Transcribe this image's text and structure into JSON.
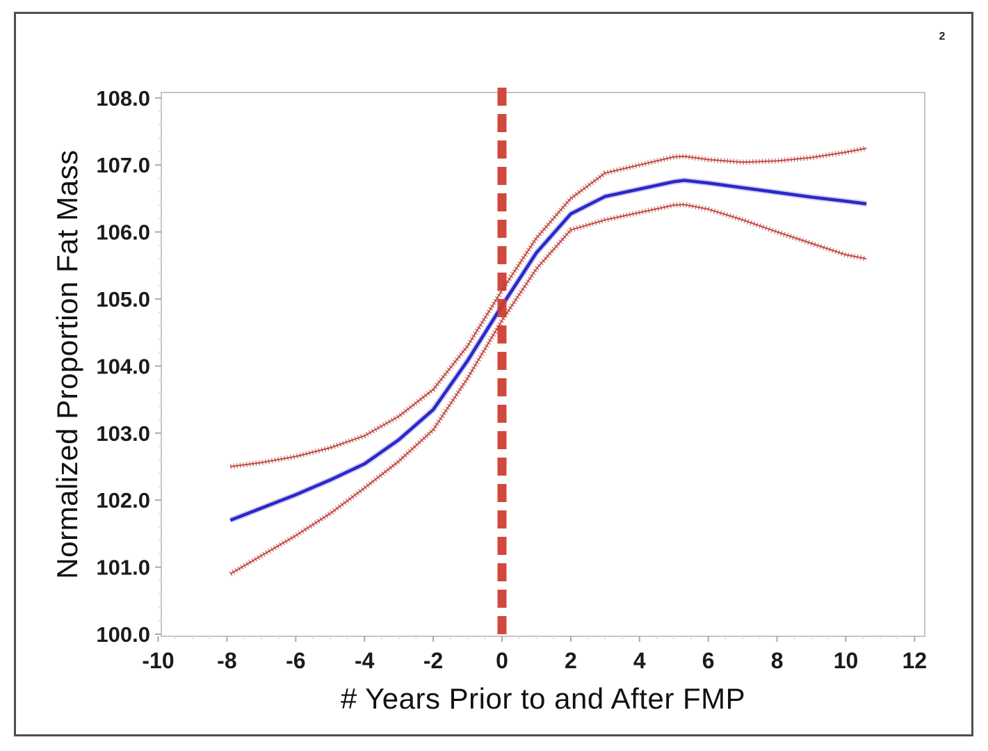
{
  "page": {
    "number": "2"
  },
  "colors": {
    "mean_line": "#2b29c8",
    "mean_halo": "#8d8ddd",
    "ci_line": "#bb423c",
    "ci_hatch": "#c7524c",
    "reference_line": "#ce3b30",
    "frame": "#c6c6c6",
    "major_tick": "#a8a8a8",
    "minor_tick": "#d9d9d9",
    "tick_label": "#1b1b1b"
  },
  "chart_data": {
    "type": "line",
    "title": "",
    "xlabel": "# Years Prior to and After FMP",
    "ylabel": "Normalized Proportion Fat Mass",
    "xlim": [
      -10.4,
      12.4
    ],
    "ylim": [
      100.0,
      108.1
    ],
    "grid": false,
    "legend_position": "none",
    "x_ticks": [
      {
        "value": -10,
        "label": "-10"
      },
      {
        "value": -8,
        "label": "-8"
      },
      {
        "value": -6,
        "label": "-6"
      },
      {
        "value": -4,
        "label": "-4"
      },
      {
        "value": -2,
        "label": "-2"
      },
      {
        "value": 0,
        "label": "0"
      },
      {
        "value": 2,
        "label": "2"
      },
      {
        "value": 4,
        "label": "4"
      },
      {
        "value": 6,
        "label": "6"
      },
      {
        "value": 8,
        "label": "8"
      },
      {
        "value": 10,
        "label": "10"
      },
      {
        "value": 12,
        "label": "12"
      }
    ],
    "y_ticks": [
      {
        "value": 100,
        "label": "100.0"
      },
      {
        "value": 101,
        "label": "101.0"
      },
      {
        "value": 102,
        "label": "102.0"
      },
      {
        "value": 103,
        "label": "103.0"
      },
      {
        "value": 104,
        "label": "104.0"
      },
      {
        "value": 105,
        "label": "105.0"
      },
      {
        "value": 106,
        "label": "106.0"
      },
      {
        "value": 107,
        "label": "107.0"
      },
      {
        "value": 108,
        "label": "108.0"
      }
    ],
    "reference_line": {
      "x": 0,
      "style": "dashed",
      "color": "#ce3b30"
    },
    "x": [
      -7.9,
      -7,
      -6,
      -5,
      -4,
      -3,
      -2,
      -1,
      0,
      1,
      2,
      3,
      4,
      5,
      5.3,
      6,
      7,
      8,
      9,
      10,
      10.6
    ],
    "series": [
      {
        "name": "mean",
        "style": "solid-thick",
        "color": "#2b29c8",
        "values": [
          101.7,
          101.88,
          102.08,
          102.3,
          102.54,
          102.9,
          103.35,
          104.08,
          104.9,
          105.69,
          106.27,
          106.53,
          106.64,
          106.75,
          106.77,
          106.73,
          106.66,
          106.59,
          106.52,
          106.46,
          106.42
        ]
      },
      {
        "name": "upper_ci",
        "style": "hatched",
        "color": "#bb423c",
        "values": [
          102.5,
          102.56,
          102.65,
          102.78,
          102.96,
          103.25,
          103.65,
          104.3,
          105.13,
          105.91,
          106.5,
          106.88,
          107.0,
          107.12,
          107.13,
          107.08,
          107.04,
          107.06,
          107.11,
          107.19,
          107.25
        ]
      },
      {
        "name": "lower_ci",
        "style": "hatched",
        "color": "#bb423c",
        "values": [
          100.9,
          101.17,
          101.47,
          101.8,
          102.18,
          102.58,
          103.05,
          103.82,
          104.68,
          105.45,
          106.03,
          106.18,
          106.29,
          106.4,
          106.41,
          106.34,
          106.18,
          106.0,
          105.83,
          105.66,
          105.6
        ]
      }
    ]
  }
}
